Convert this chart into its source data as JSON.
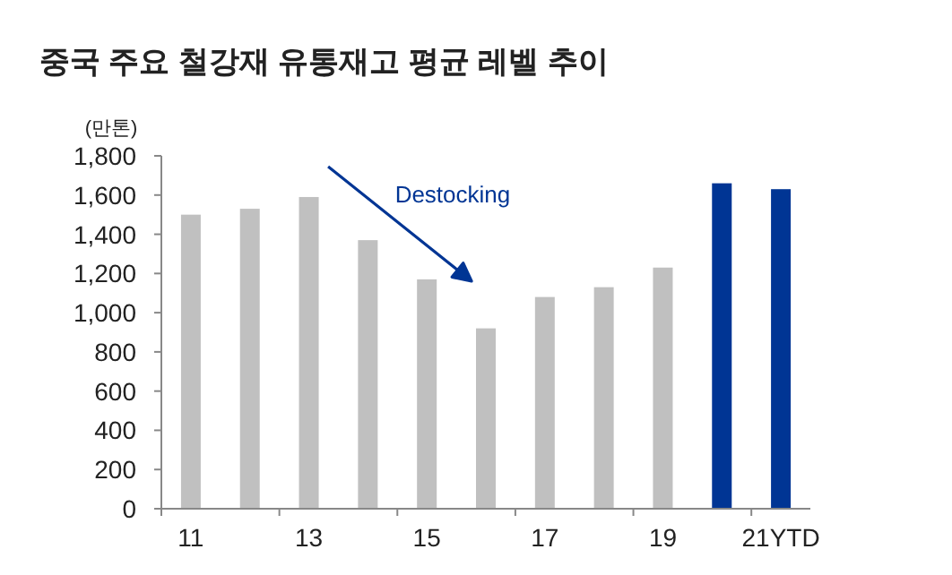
{
  "chart_data": {
    "type": "bar",
    "title": "중국 주요 철강재 유통재고 평균 레벨 추이",
    "ylabel": "(만톤)",
    "categories": [
      "11",
      null,
      "13",
      null,
      "15",
      null,
      "17",
      null,
      "19",
      null,
      "21YTD"
    ],
    "values": [
      1500,
      1530,
      1590,
      1370,
      1170,
      920,
      1080,
      1130,
      1230,
      1660,
      1630
    ],
    "colors": [
      "#c0c0c0",
      "#c0c0c0",
      "#c0c0c0",
      "#c0c0c0",
      "#c0c0c0",
      "#c0c0c0",
      "#c0c0c0",
      "#c0c0c0",
      "#c0c0c0",
      "#003594",
      "#003594"
    ],
    "ylim": [
      0,
      1800
    ],
    "yticks": [
      0,
      {
        "value": 200,
        "label": "200"
      },
      {
        "value": 400,
        "label": "400"
      },
      {
        "value": 600,
        "label": "600"
      },
      {
        "value": 800,
        "label": "800"
      },
      {
        "value": 1000,
        "label": "1,000"
      },
      {
        "value": 1200,
        "label": "1,200"
      },
      {
        "value": 1400,
        "label": "1,400"
      },
      {
        "value": 1600,
        "label": "1,600"
      },
      {
        "value": 1800,
        "label": "1,800"
      }
    ],
    "annotations": [
      "Destocking"
    ],
    "grid": false
  }
}
